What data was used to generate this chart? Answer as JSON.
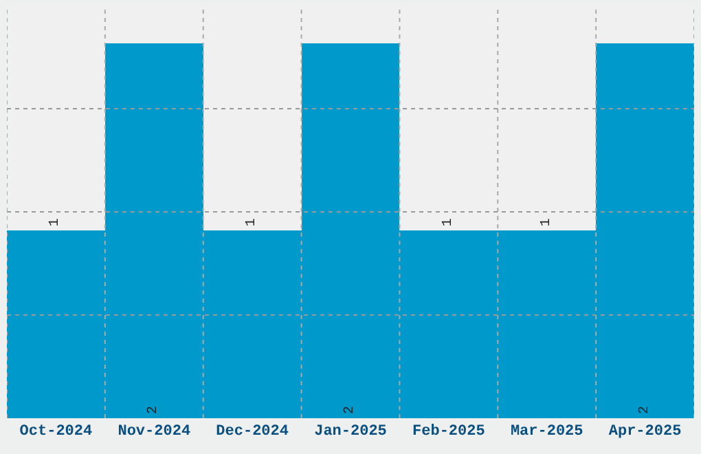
{
  "chart_data": {
    "type": "bar",
    "categories": [
      "Oct-2024",
      "Nov-2024",
      "Dec-2024",
      "Jan-2025",
      "Feb-2025",
      "Mar-2025",
      "Apr-2025"
    ],
    "values": [
      1,
      2,
      1,
      2,
      1,
      1,
      2
    ],
    "color": "#0099cc",
    "ylim": [
      0,
      2.2
    ],
    "yticks": [
      {
        "value": 0.55,
        "label": null
      },
      {
        "value": 1.1,
        "label": null
      },
      {
        "value": 1.65,
        "label": null
      }
    ],
    "grid": true,
    "tick_labels": "x",
    "data_labels": true
  }
}
